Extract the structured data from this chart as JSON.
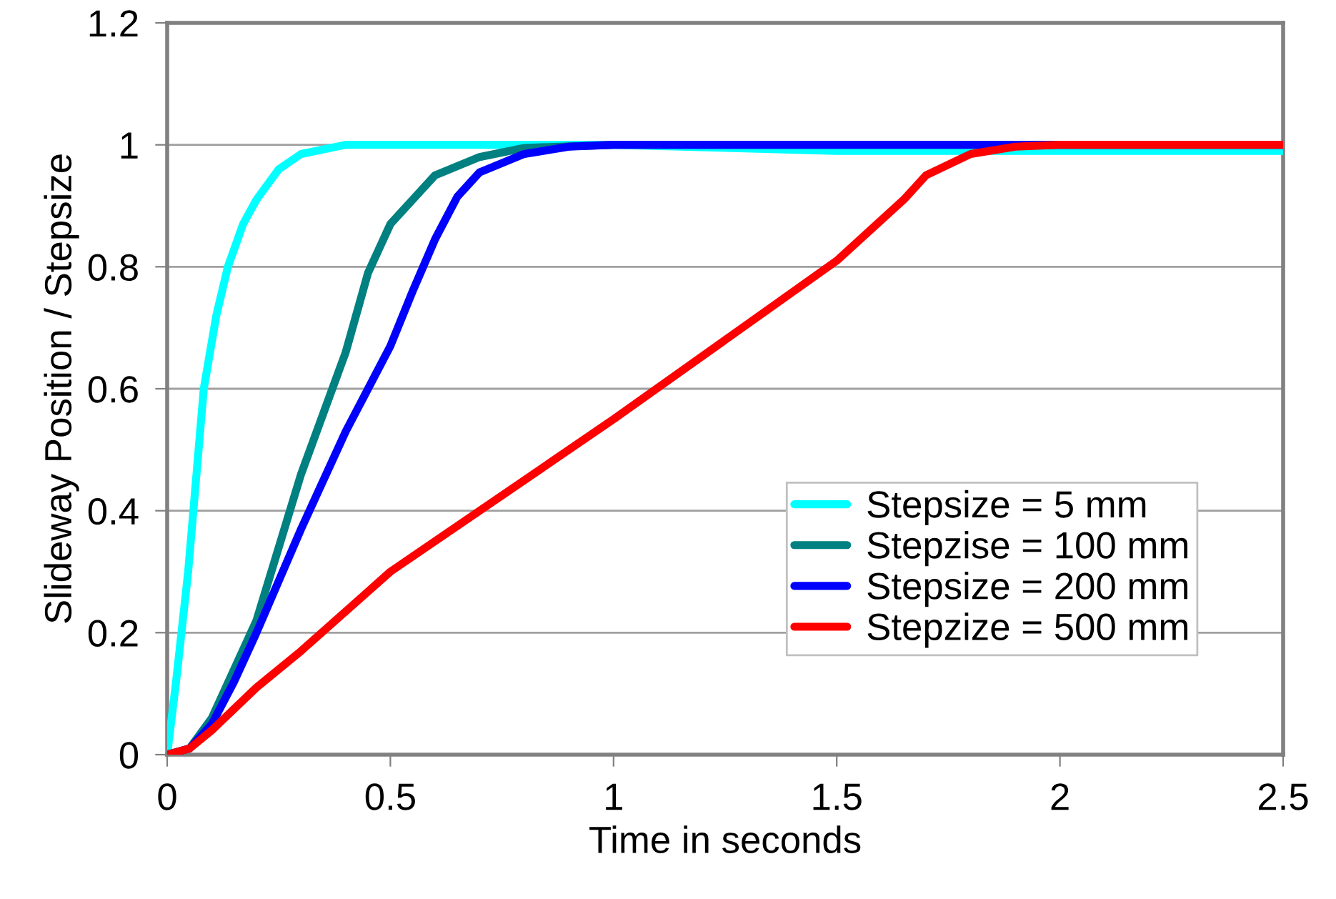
{
  "chart_data": {
    "type": "line",
    "xlabel": "Time in seconds",
    "ylabel": "Slideway Position / Stepsize",
    "xlim": [
      0,
      2.5
    ],
    "xticks": [
      0,
      0.5,
      1,
      1.5,
      2,
      2.5
    ],
    "ylim": [
      0,
      1.2
    ],
    "yticks": [
      0,
      0.2,
      0.4,
      0.6,
      0.8,
      1,
      1.2
    ],
    "grid": "y",
    "legend": "bottom right",
    "line_style": "solid",
    "marker": "none",
    "series": [
      {
        "name": "Stepsize = 5 mm",
        "color": "#00ffff",
        "x": [
          0,
          0.02,
          0.047,
          0.082,
          0.11,
          0.136,
          0.17,
          0.2,
          0.25,
          0.3,
          0.4,
          1.0,
          1.5,
          2.5
        ],
        "values": [
          0,
          0.12,
          0.3,
          0.6,
          0.72,
          0.8,
          0.87,
          0.91,
          0.96,
          0.985,
          1.0,
          1.0,
          0.99,
          0.99
        ]
      },
      {
        "name": "Stepzise = 100 mm",
        "color": "#008080",
        "x": [
          0,
          0.05,
          0.1,
          0.15,
          0.2,
          0.3,
          0.4,
          0.45,
          0.5,
          0.6,
          0.7,
          0.8,
          1.0,
          2.5
        ],
        "values": [
          0,
          0.01,
          0.06,
          0.14,
          0.22,
          0.46,
          0.66,
          0.79,
          0.87,
          0.95,
          0.98,
          0.995,
          1.0,
          1.0
        ]
      },
      {
        "name": "Stepsize = 200 mm",
        "color": "#0000ff",
        "x": [
          0,
          0.05,
          0.1,
          0.15,
          0.2,
          0.3,
          0.4,
          0.5,
          0.55,
          0.6,
          0.65,
          0.7,
          0.8,
          0.9,
          1.0,
          2.5
        ],
        "values": [
          0,
          0.01,
          0.05,
          0.12,
          0.2,
          0.37,
          0.53,
          0.67,
          0.76,
          0.845,
          0.915,
          0.955,
          0.985,
          0.997,
          1.0,
          1.0
        ]
      },
      {
        "name": "Stepzize = 500 mm",
        "color": "#ff0000",
        "x": [
          0,
          0.05,
          0.1,
          0.2,
          0.3,
          0.5,
          1.0,
          1.5,
          1.65,
          1.7,
          1.8,
          1.9,
          2.0,
          2.5
        ],
        "values": [
          0,
          0.01,
          0.04,
          0.11,
          0.17,
          0.3,
          0.55,
          0.81,
          0.91,
          0.95,
          0.985,
          0.997,
          1.0,
          1.0
        ]
      }
    ]
  }
}
